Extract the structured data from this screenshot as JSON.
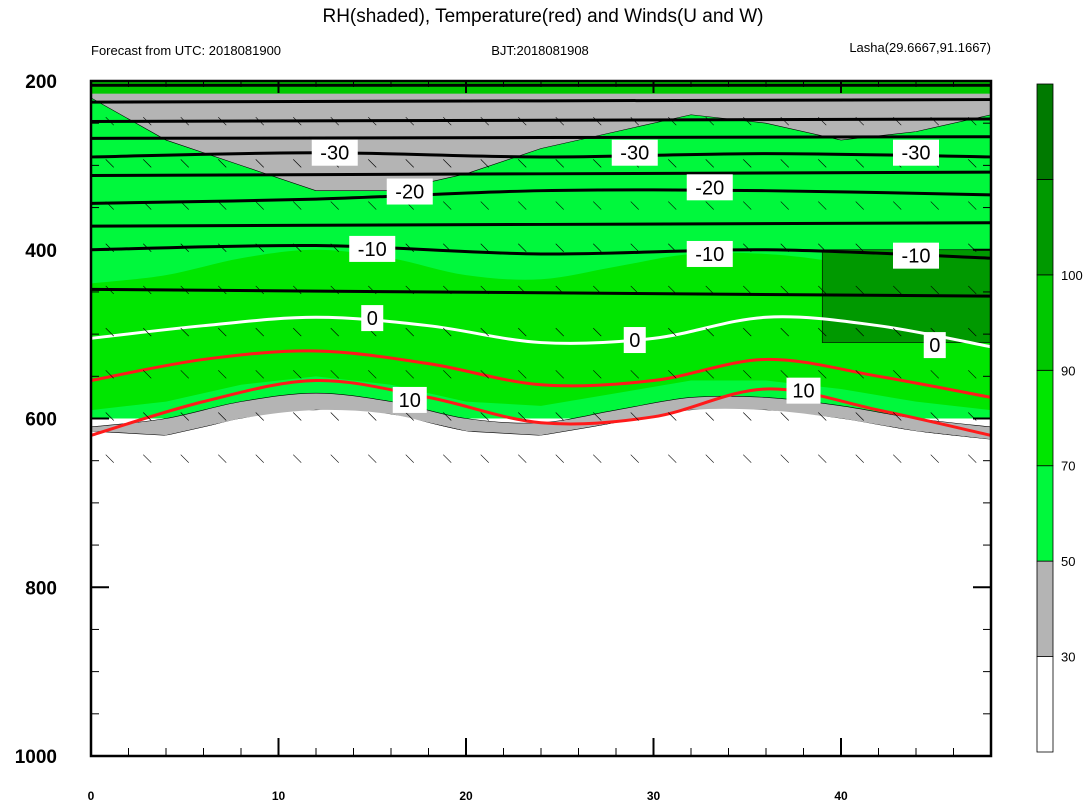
{
  "chart_data": {
    "type": "contour",
    "title": "RH(shaded), Temperature(red) and Winds(U and W)",
    "subtitle_left": "Forecast from UTC: 2018081900",
    "subtitle_center": "BJT:2018081908",
    "subtitle_right": "Lasha(29.6667,91.1667)",
    "x_ticks": [
      0,
      10,
      20,
      30,
      40
    ],
    "x_range": [
      0,
      48
    ],
    "y_ticks": [
      200,
      400,
      600,
      800,
      1000
    ],
    "y_range": [
      200,
      1000
    ],
    "y_inverted": true,
    "colorbar": {
      "labels": [
        "30",
        "50",
        "70",
        "90",
        "100"
      ],
      "level_values": [
        30,
        50,
        70,
        90,
        100
      ],
      "colors": [
        "#ffffff",
        "#b4b4b4",
        "#00f83c",
        "#00e600",
        "#00c800",
        "#009900",
        "#007a00"
      ]
    },
    "rh_field": {
      "note_free": "",
      "gray_top_pressure": [
        220,
        270,
        300,
        330,
        330,
        310,
        280,
        260,
        240,
        250,
        270,
        260,
        240
      ],
      "green_bottom_pressure": [
        610,
        600,
        580,
        570,
        580,
        600,
        605,
        590,
        575,
        575,
        585,
        600,
        610
      ],
      "gray_bottom_pressure": [
        615,
        620,
        600,
        590,
        595,
        615,
        620,
        605,
        590,
        590,
        600,
        615,
        625
      ],
      "x_samples": [
        0,
        4,
        8,
        12,
        16,
        20,
        24,
        28,
        32,
        36,
        40,
        44,
        48
      ]
    },
    "temperature_contours": [
      {
        "label": "-30",
        "x": [
          0,
          12,
          24,
          36,
          48
        ],
        "y": [
          290,
          285,
          290,
          286,
          290
        ]
      },
      {
        "label": "-20",
        "x": [
          0,
          12,
          24,
          36,
          48
        ],
        "y": [
          345,
          340,
          330,
          330,
          335
        ]
      },
      {
        "label": "-10",
        "x": [
          0,
          12,
          24,
          36,
          48
        ],
        "y": [
          400,
          395,
          405,
          400,
          410
        ]
      },
      {
        "label": "0",
        "x": [
          0,
          6,
          12,
          18,
          24,
          30,
          36,
          42,
          48
        ],
        "y": [
          505,
          490,
          480,
          490,
          510,
          505,
          480,
          490,
          515
        ]
      },
      {
        "label": "",
        "x": [
          0,
          6,
          12,
          18,
          24,
          30,
          36,
          42,
          48
        ],
        "y": [
          555,
          530,
          520,
          535,
          560,
          555,
          530,
          550,
          575
        ]
      },
      {
        "label": "10",
        "x": [
          0,
          6,
          12,
          18,
          24,
          30,
          36,
          42,
          48
        ],
        "y": [
          620,
          580,
          555,
          575,
          605,
          598,
          565,
          590,
          620
        ]
      }
    ],
    "extra_isotherms_black": [
      {
        "x": [
          0,
          48
        ],
        "y": [
          205,
          205
        ]
      },
      {
        "x": [
          0,
          48
        ],
        "y": [
          225,
          222
        ]
      },
      {
        "x": [
          0,
          48
        ],
        "y": [
          248,
          245
        ]
      },
      {
        "x": [
          0,
          48
        ],
        "y": [
          268,
          266
        ]
      },
      {
        "x": [
          0,
          48
        ],
        "y": [
          312,
          308
        ]
      },
      {
        "x": [
          0,
          48
        ],
        "y": [
          372,
          368
        ]
      },
      {
        "x": [
          0,
          48
        ],
        "y": [
          447,
          455
        ]
      }
    ],
    "labels_positions": [
      {
        "label": "-30",
        "x": 13,
        "y": 285
      },
      {
        "label": "-30",
        "x": 29,
        "y": 285
      },
      {
        "label": "-30",
        "x": 44,
        "y": 285
      },
      {
        "label": "-20",
        "x": 17,
        "y": 331
      },
      {
        "label": "-20",
        "x": 33,
        "y": 326
      },
      {
        "label": "-10",
        "x": 15,
        "y": 399
      },
      {
        "label": "-10",
        "x": 33,
        "y": 405
      },
      {
        "label": "-10",
        "x": 44,
        "y": 407
      },
      {
        "label": "0",
        "x": 15,
        "y": 481
      },
      {
        "label": "0",
        "x": 29,
        "y": 507
      },
      {
        "label": "0",
        "x": 45,
        "y": 513
      },
      {
        "label": "10",
        "x": 17,
        "y": 578
      },
      {
        "label": "10",
        "x": 38,
        "y": 567
      }
    ]
  }
}
